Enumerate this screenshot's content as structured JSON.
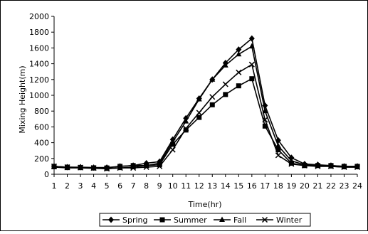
{
  "chart_data": {
    "type": "line",
    "title": "",
    "xlabel": "Time(hr)",
    "ylabel": "Mixing Height(m)",
    "ylim": [
      0,
      2000
    ],
    "yticks": [
      0,
      200,
      400,
      600,
      800,
      1000,
      1200,
      1400,
      1600,
      1800,
      2000
    ],
    "x": [
      1,
      2,
      3,
      4,
      5,
      6,
      7,
      8,
      9,
      10,
      11,
      12,
      13,
      14,
      15,
      16,
      17,
      18,
      19,
      20,
      21,
      22,
      23,
      24
    ],
    "grid": false,
    "legend_position": "bottom",
    "series": [
      {
        "name": "Spring",
        "marker": "diamond",
        "color": "#000000",
        "values": [
          100,
          90,
          90,
          85,
          85,
          100,
          110,
          140,
          160,
          440,
          710,
          960,
          1200,
          1410,
          1580,
          1720,
          870,
          430,
          210,
          130,
          120,
          110,
          100,
          100
        ]
      },
      {
        "name": "Summer",
        "marker": "square",
        "color": "#000000",
        "values": [
          100,
          90,
          85,
          80,
          80,
          100,
          110,
          110,
          120,
          380,
          560,
          720,
          880,
          1010,
          1120,
          1210,
          610,
          310,
          140,
          110,
          110,
          110,
          100,
          100
        ]
      },
      {
        "name": "Fall",
        "marker": "triangle",
        "color": "#000000",
        "values": [
          90,
          80,
          80,
          75,
          70,
          80,
          90,
          110,
          140,
          410,
          670,
          950,
          1200,
          1380,
          1520,
          1620,
          800,
          360,
          170,
          120,
          110,
          100,
          90,
          90
        ]
      },
      {
        "name": "Winter",
        "marker": "x",
        "color": "#000000",
        "values": [
          100,
          90,
          85,
          80,
          70,
          80,
          80,
          90,
          100,
          310,
          580,
          780,
          980,
          1140,
          1290,
          1390,
          690,
          240,
          130,
          110,
          100,
          100,
          90,
          90
        ]
      }
    ]
  }
}
